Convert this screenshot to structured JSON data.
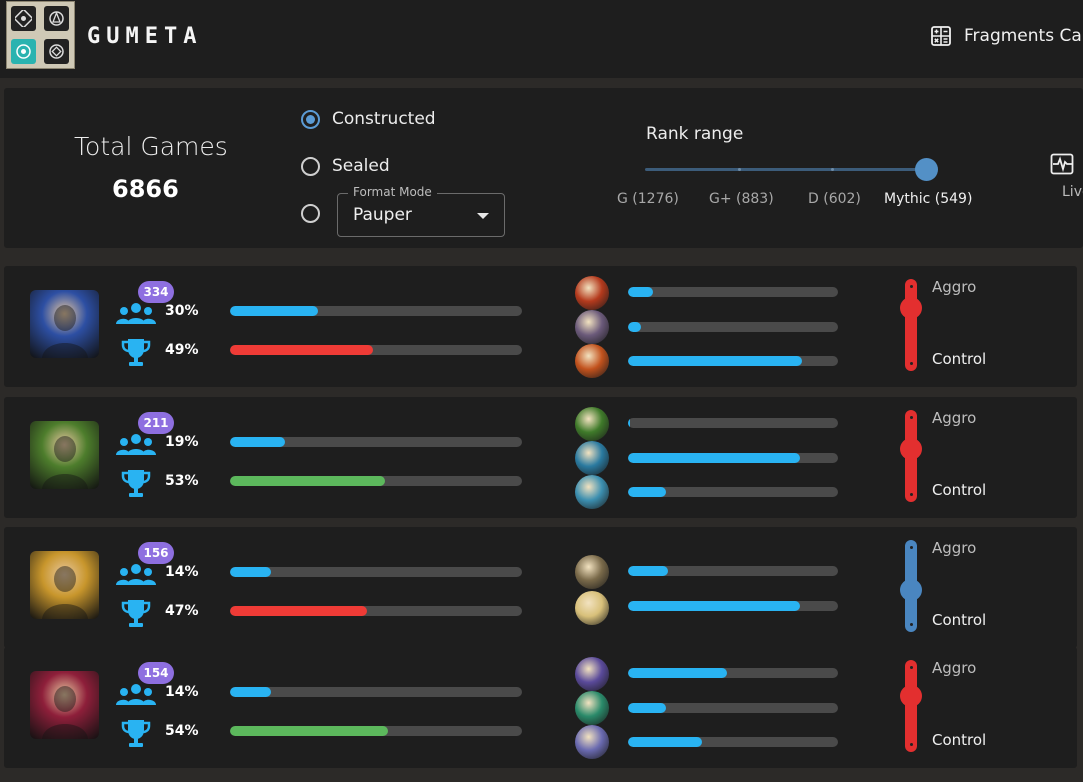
{
  "header": {
    "brand": "GUMETA",
    "fragments_link": "Fragments Calc",
    "logo_icon": "set-symbols-logo",
    "calculator_icon": "calculator-icon"
  },
  "filters": {
    "total_label": "Total Games",
    "total_value": "6866",
    "format_options": [
      {
        "label": "Constructed",
        "checked": true
      },
      {
        "label": "Sealed",
        "checked": false
      },
      {
        "label": "",
        "checked": false
      }
    ],
    "format_mode": {
      "legend": "Format Mode",
      "value": "Pauper"
    },
    "rank": {
      "title": "Rank range",
      "labels": [
        "G (1276)",
        "G+ (883)",
        "D (602)",
        "Mythic (549)"
      ],
      "selected": "Mythic (549)"
    },
    "live_label": "Live"
  },
  "decks": [
    {
      "count": "334",
      "play_pct": "30%",
      "play_fraction": 0.3,
      "win_pct": "49%",
      "win_fraction": 0.49,
      "win_color": "#ef3b36",
      "portrait_color": "#2d4fa3",
      "cards": [
        {
          "fraction": 0.12,
          "color": "#b43a1d"
        },
        {
          "fraction": 0.06,
          "color": "#6b5a7a"
        },
        {
          "fraction": 0.83,
          "color": "#c2521d"
        }
      ],
      "slider_value": 0.75,
      "slider_color": "#e32f2f",
      "aggro_label": "Aggro",
      "control_label": "Control"
    },
    {
      "count": "211",
      "play_pct": "19%",
      "play_fraction": 0.19,
      "win_pct": "53%",
      "win_fraction": 0.53,
      "win_color": "#5cb85c",
      "portrait_color": "#4d7d2c",
      "cards": [
        {
          "fraction": 0.01,
          "color": "#3f7a2a"
        },
        {
          "fraction": 0.82,
          "color": "#2a7aa0"
        },
        {
          "fraction": 0.18,
          "color": "#3c8fb0"
        }
      ],
      "slider_value": 0.6,
      "slider_color": "#e32f2f",
      "aggro_label": "Aggro",
      "control_label": "Control"
    },
    {
      "count": "156",
      "play_pct": "14%",
      "play_fraction": 0.14,
      "win_pct": "47%",
      "win_fraction": 0.47,
      "win_color": "#ef3b36",
      "portrait_color": "#c8962c",
      "cards": [
        {
          "fraction": 0.19,
          "color": "#7a6a4a"
        },
        {
          "fraction": 0.82,
          "color": "#d8c07a"
        }
      ],
      "slider_value": 0.45,
      "slider_color": "#4a86c0",
      "aggro_label": "Aggro",
      "control_label": "Control"
    },
    {
      "count": "154",
      "play_pct": "14%",
      "play_fraction": 0.14,
      "win_pct": "54%",
      "win_fraction": 0.54,
      "win_color": "#5cb85c",
      "portrait_color": "#8e1f3a",
      "cards": [
        {
          "fraction": 0.47,
          "color": "#5a4a9a"
        },
        {
          "fraction": 0.18,
          "color": "#2a8a6a"
        },
        {
          "fraction": 0.35,
          "color": "#6a6ab0"
        }
      ],
      "slider_value": 0.65,
      "slider_color": "#e32f2f",
      "aggro_label": "Aggro",
      "control_label": "Control"
    }
  ],
  "icons": {
    "players": "people-icon",
    "winrate": "trophy-icon",
    "live": "pulse-icon"
  }
}
